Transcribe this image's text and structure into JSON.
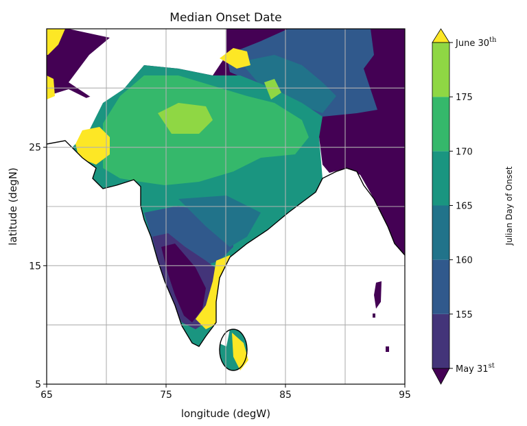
{
  "chart_data": {
    "type": "heatmap",
    "subtype": "filled-contour-map",
    "title": "Median Onset Date",
    "xlabel": "longitude (degW)",
    "ylabel": "latitude (degN)",
    "xlim": [
      65,
      95
    ],
    "ylim": [
      5,
      35
    ],
    "xticks": [
      65,
      75,
      85,
      95
    ],
    "yticks": [
      5,
      15,
      25
    ],
    "xgrid": [
      65,
      70,
      75,
      80,
      85,
      90,
      95
    ],
    "ygrid": [
      5,
      10,
      15,
      20,
      25,
      30
    ],
    "grid": true,
    "colorbar": {
      "label": "Julian Day of Onset",
      "colormap": "viridis",
      "extend": "both",
      "levels": [
        151,
        155,
        160,
        165,
        170,
        175,
        181
      ],
      "tick_labels": [
        {
          "value": 151,
          "label": "May 31",
          "sup": "st"
        },
        {
          "value": 155,
          "label": "155"
        },
        {
          "value": 160,
          "label": "160"
        },
        {
          "value": 165,
          "label": "165"
        },
        {
          "value": 170,
          "label": "170"
        },
        {
          "value": 175,
          "label": "175"
        },
        {
          "value": 181,
          "label": "June 30",
          "sup": "th"
        }
      ],
      "colors": [
        "#440154",
        "#433479",
        "#30598c",
        "#21738a",
        "#1a9580",
        "#35b86b",
        "#8fd744",
        "#fde725"
      ]
    }
  }
}
